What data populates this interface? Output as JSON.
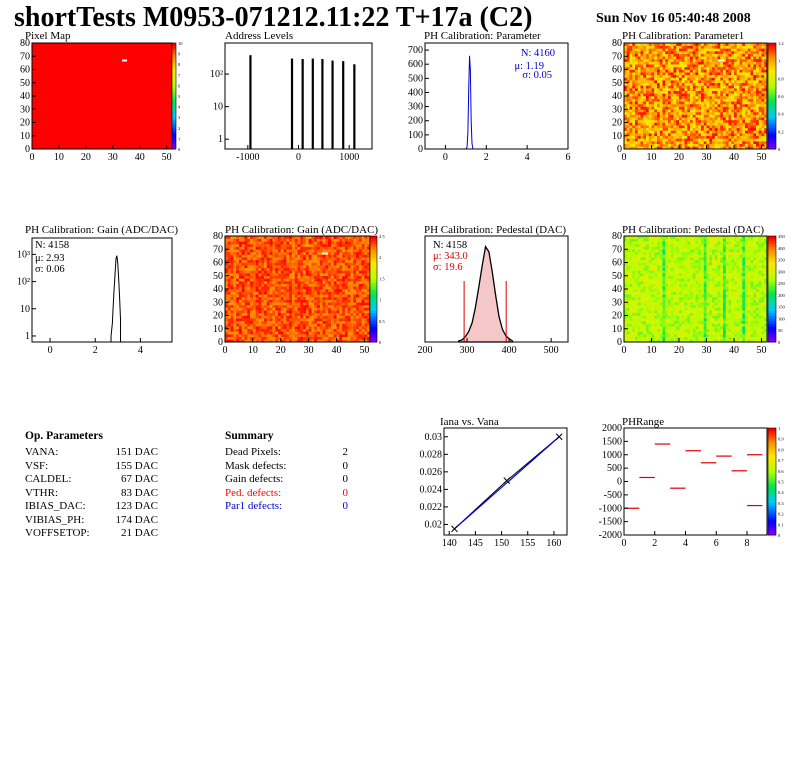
{
  "header": {
    "title": "shortTests M0953-071212.11:22 T+17a (C2)",
    "date": "Sun Nov 16 05:40:48 2008"
  },
  "chart_data": [
    {
      "id": "pixel-map",
      "type": "heatmap",
      "title": "Pixel Map",
      "xticks": [
        "0",
        "10",
        "20",
        "30",
        "40",
        "50"
      ],
      "yticks": [
        "0",
        "10",
        "20",
        "30",
        "40",
        "50",
        "60",
        "70",
        "80"
      ],
      "zticks": [
        "0",
        "1",
        "2",
        "3",
        "4",
        "5",
        "6",
        "7",
        "8",
        "9",
        "10"
      ],
      "fill": "#ff0000",
      "zmax": 10
    },
    {
      "id": "address-levels",
      "type": "bar",
      "title": "Address Levels",
      "yscale": "log",
      "xticks": [
        "-1000",
        "0",
        "1000"
      ],
      "yticks": [
        "1",
        "10",
        "10²"
      ],
      "xlim": [
        -1450,
        1450
      ],
      "peaks": [
        {
          "x": -950,
          "count": 380
        },
        {
          "x": -130,
          "count": 300
        },
        {
          "x": 80,
          "count": 290
        },
        {
          "x": 280,
          "count": 300
        },
        {
          "x": 470,
          "count": 290
        },
        {
          "x": 670,
          "count": 260
        },
        {
          "x": 880,
          "count": 250
        },
        {
          "x": 1100,
          "count": 200
        }
      ]
    },
    {
      "id": "ph-cal-parameter",
      "type": "bar",
      "title": "PH Calibration: Parameter",
      "xticks": [
        "0",
        "2",
        "4",
        "6"
      ],
      "yticks": [
        "0",
        "100",
        "200",
        "300",
        "400",
        "500",
        "600",
        "700"
      ],
      "xlim": [
        -1,
        6
      ],
      "ylim": [
        0,
        750
      ],
      "stats": {
        "n": "N: 4160",
        "mean": "μ: 1.19",
        "sigma": "σ: 0.05"
      },
      "bins": [
        [
          1.02,
          3
        ],
        [
          1.06,
          15
        ],
        [
          1.1,
          120
        ],
        [
          1.14,
          420
        ],
        [
          1.18,
          660
        ],
        [
          1.22,
          560
        ],
        [
          1.26,
          200
        ],
        [
          1.3,
          40
        ],
        [
          1.34,
          5
        ]
      ]
    },
    {
      "id": "ph-cal-parameter1",
      "type": "heatmap",
      "title": "PH Calibration: Parameter1",
      "xticks": [
        "0",
        "10",
        "20",
        "30",
        "40",
        "50"
      ],
      "yticks": [
        "0",
        "10",
        "20",
        "30",
        "40",
        "50",
        "60",
        "70",
        "80"
      ],
      "zticks": [
        "0",
        "0.2",
        "0.4",
        "0.6",
        "0.8",
        "1",
        "1.2"
      ],
      "zmax": 1.3
    },
    {
      "id": "ph-cal-gain",
      "type": "bar",
      "title": "PH Calibration: Gain (ADC/DAC)",
      "yscale": "log",
      "xticks": [
        "0",
        "2",
        "4"
      ],
      "yticks": [
        "1",
        "10",
        "10²",
        "10³"
      ],
      "xlim": [
        -0.8,
        5.4
      ],
      "stats": {
        "n": "N: 4158",
        "mean": "μ: 2.93",
        "sigma": "σ: 0.06"
      },
      "bins": [
        [
          2.7,
          1
        ],
        [
          2.76,
          3
        ],
        [
          2.8,
          15
        ],
        [
          2.84,
          60
        ],
        [
          2.88,
          200
        ],
        [
          2.92,
          700
        ],
        [
          2.96,
          900
        ],
        [
          3.0,
          450
        ],
        [
          3.04,
          120
        ],
        [
          3.08,
          25
        ],
        [
          3.12,
          4
        ]
      ]
    },
    {
      "id": "ph-cal-gain-map",
      "type": "heatmap",
      "title": "PH Calibration: Gain (ADC/DAC)",
      "xticks": [
        "0",
        "10",
        "20",
        "30",
        "40",
        "50"
      ],
      "yticks": [
        "0",
        "10",
        "20",
        "30",
        "40",
        "50",
        "60",
        "70",
        "80"
      ],
      "zticks": [
        "0",
        "0.5",
        "1",
        "1.5",
        "2",
        "2.5"
      ],
      "zmax": 2.8
    },
    {
      "id": "ph-cal-pedestal",
      "type": "bar",
      "title": "PH Calibration: Pedestal (DAC)",
      "xticks": [
        "200",
        "300",
        "400",
        "500"
      ],
      "xlim": [
        200,
        540
      ],
      "ymax": 100,
      "stats": {
        "n": "N: 4158",
        "mean": "μ: 343.0",
        "sigma": "σ: 19.6"
      },
      "cuts": [
        293,
        393
      ],
      "bins": [
        [
          280,
          1
        ],
        [
          288,
          2
        ],
        [
          296,
          5
        ],
        [
          304,
          10
        ],
        [
          312,
          18
        ],
        [
          320,
          33
        ],
        [
          328,
          52
        ],
        [
          336,
          72
        ],
        [
          344,
          90
        ],
        [
          352,
          85
        ],
        [
          360,
          66
        ],
        [
          368,
          44
        ],
        [
          376,
          24
        ],
        [
          384,
          12
        ],
        [
          392,
          6
        ],
        [
          400,
          3
        ],
        [
          408,
          1
        ]
      ]
    },
    {
      "id": "ph-cal-pedestal-map",
      "type": "heatmap",
      "title": "PH Calibration: Pedestal (DAC)",
      "xticks": [
        "0",
        "10",
        "20",
        "30",
        "40",
        "50"
      ],
      "yticks": [
        "0",
        "10",
        "20",
        "30",
        "40",
        "50",
        "60",
        "70",
        "80"
      ],
      "zticks": [
        "0",
        "50",
        "100",
        "150",
        "200",
        "250",
        "300",
        "350",
        "400",
        "450"
      ],
      "zmax": 460
    },
    {
      "id": "iana-vs-vana",
      "type": "line",
      "title": "Iana vs. Vana",
      "xticks": [
        "140",
        "145",
        "150",
        "155",
        "160"
      ],
      "yticks": [
        "0.02",
        "0.022",
        "0.024",
        "0.026",
        "0.028",
        "0.03"
      ],
      "xlim": [
        139,
        162.5
      ],
      "ylim": [
        0.0188,
        0.031
      ],
      "x": [
        141,
        151,
        161
      ],
      "y": [
        0.0195,
        0.025,
        0.03
      ]
    },
    {
      "id": "ph-range",
      "type": "heatmap",
      "title": "PHRange",
      "xticks": [
        "0",
        "2",
        "4",
        "6",
        "8"
      ],
      "yticks": [
        "-2000",
        "-1500",
        "-1000",
        "-500",
        "0",
        "500",
        "1000",
        "1500",
        "2000"
      ],
      "zticks": [
        "0",
        "0.1",
        "0.2",
        "0.3",
        "0.4",
        "0.5",
        "0.6",
        "0.7",
        "0.8",
        "0.9",
        "1"
      ],
      "xlim": [
        0,
        9.3
      ],
      "ylim": [
        -2000,
        2000
      ],
      "segments": [
        [
          0,
          -1000
        ],
        [
          1,
          150
        ],
        [
          2,
          1400
        ],
        [
          3,
          -250
        ],
        [
          4,
          1150
        ],
        [
          5,
          700
        ],
        [
          6,
          950
        ],
        [
          7,
          400
        ],
        [
          8,
          1000
        ],
        [
          8,
          -900
        ]
      ]
    }
  ],
  "op_parameters": {
    "heading": "Op. Parameters",
    "rows": [
      {
        "name": "VANA:",
        "value": "151 DAC"
      },
      {
        "name": "VSF:",
        "value": "155 DAC"
      },
      {
        "name": "CALDEL:",
        "value": "67 DAC"
      },
      {
        "name": "VTHR:",
        "value": "83 DAC"
      },
      {
        "name": "IBIAS_DAC:",
        "value": "123 DAC"
      },
      {
        "name": "VIBIAS_PH:",
        "value": "174 DAC"
      },
      {
        "name": "VOFFSETOP:",
        "value": "21 DAC"
      }
    ]
  },
  "summary": {
    "heading": "Summary",
    "rows": [
      {
        "name": "Dead Pixels:",
        "value": "2",
        "color": "#000000"
      },
      {
        "name": "Mask defects:",
        "value": "0",
        "color": "#000000"
      },
      {
        "name": "Gain defects:",
        "value": "0",
        "color": "#000000"
      },
      {
        "name": "Ped. defects:",
        "value": "0",
        "color": "#ff0000"
      },
      {
        "name": "Par1 defects:",
        "value": "0",
        "color": "#0000cc"
      }
    ]
  }
}
